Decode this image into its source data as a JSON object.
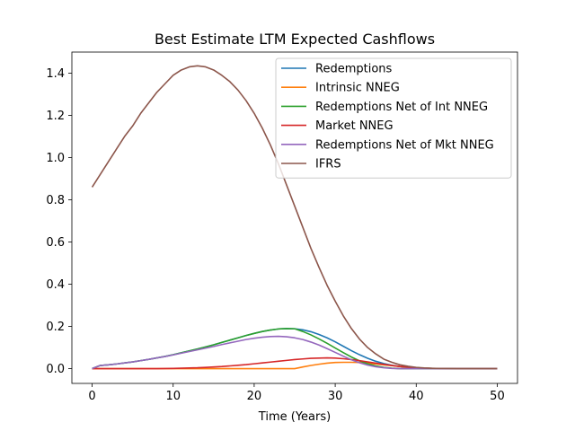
{
  "chart_data": {
    "type": "line",
    "title": "Best Estimate LTM Expected Cashflows",
    "xlabel": "Time (Years)",
    "ylabel": "",
    "xlim": [
      -2.5,
      52.5
    ],
    "ylim": [
      -0.07,
      1.5
    ],
    "xticks": [
      0,
      10,
      20,
      30,
      40,
      50
    ],
    "yticks": [
      0.0,
      0.2,
      0.4,
      0.6,
      0.8,
      1.0,
      1.2,
      1.4
    ],
    "ytick_labels": [
      "0.0",
      "0.2",
      "0.4",
      "0.6",
      "0.8",
      "1.0",
      "1.2",
      "1.4"
    ],
    "grid": false,
    "legend": "top-right",
    "x": [
      0,
      1,
      2,
      3,
      4,
      5,
      6,
      7,
      8,
      9,
      10,
      11,
      12,
      13,
      14,
      15,
      16,
      17,
      18,
      19,
      20,
      21,
      22,
      23,
      24,
      25,
      26,
      27,
      28,
      29,
      30,
      31,
      32,
      33,
      34,
      35,
      36,
      37,
      38,
      39,
      40,
      41,
      42,
      43,
      44,
      45,
      46,
      47,
      48,
      49,
      50
    ],
    "series": [
      {
        "name": "Redemptions",
        "color": "#1f77b4",
        "values": [
          0.0,
          0.015,
          0.018,
          0.022,
          0.027,
          0.032,
          0.038,
          0.044,
          0.051,
          0.058,
          0.066,
          0.075,
          0.084,
          0.093,
          0.103,
          0.113,
          0.124,
          0.135,
          0.146,
          0.157,
          0.167,
          0.176,
          0.183,
          0.188,
          0.19,
          0.189,
          0.184,
          0.175,
          0.162,
          0.146,
          0.127,
          0.106,
          0.085,
          0.066,
          0.049,
          0.035,
          0.024,
          0.016,
          0.01,
          0.006,
          0.004,
          0.002,
          0.001,
          0.0006,
          0.0003,
          0.0001,
          0.0,
          0.0,
          0.0,
          0.0,
          0.0
        ]
      },
      {
        "name": "Intrinsic NNEG",
        "color": "#ff7f0e",
        "values": [
          0.0,
          0.0,
          0.0,
          0.0,
          0.0,
          0.0,
          0.0,
          0.0,
          0.0,
          0.0,
          0.0,
          0.0,
          0.0,
          0.0,
          0.0,
          0.0,
          0.0,
          0.0,
          0.0,
          0.0,
          0.0,
          0.0,
          0.0,
          0.0,
          0.0,
          0.0,
          0.008,
          0.015,
          0.021,
          0.026,
          0.029,
          0.03,
          0.03,
          0.029,
          0.026,
          0.022,
          0.018,
          0.014,
          0.01,
          0.007,
          0.004,
          0.002,
          0.001,
          0.0005,
          0.0002,
          0.0001,
          0.0,
          0.0,
          0.0,
          0.0,
          0.0
        ]
      },
      {
        "name": "Redemptions Net of Int NNEG",
        "color": "#2ca02c",
        "values": [
          0.0,
          0.015,
          0.018,
          0.022,
          0.027,
          0.032,
          0.038,
          0.044,
          0.051,
          0.058,
          0.066,
          0.075,
          0.084,
          0.093,
          0.103,
          0.113,
          0.124,
          0.135,
          0.146,
          0.157,
          0.167,
          0.176,
          0.183,
          0.188,
          0.19,
          0.189,
          0.176,
          0.16,
          0.141,
          0.12,
          0.098,
          0.076,
          0.055,
          0.037,
          0.023,
          0.013,
          0.006,
          0.002,
          0.0,
          0.0,
          0.0,
          0.0,
          0.0,
          0.0,
          0.0,
          0.0,
          0.0,
          0.0,
          0.0,
          0.0,
          0.0
        ]
      },
      {
        "name": "Market NNEG",
        "color": "#d62728",
        "values": [
          0.0,
          0.0,
          0.0,
          0.0,
          0.0,
          0.0,
          0.0,
          0.0,
          0.0,
          0.0005,
          0.001,
          0.002,
          0.003,
          0.004,
          0.006,
          0.008,
          0.01,
          0.013,
          0.016,
          0.019,
          0.023,
          0.027,
          0.031,
          0.035,
          0.039,
          0.043,
          0.046,
          0.049,
          0.05,
          0.051,
          0.05,
          0.047,
          0.043,
          0.038,
          0.032,
          0.026,
          0.02,
          0.015,
          0.01,
          0.007,
          0.004,
          0.002,
          0.001,
          0.0005,
          0.0002,
          0.0001,
          0.0,
          0.0,
          0.0,
          0.0,
          0.0
        ]
      },
      {
        "name": "Redemptions Net of Mkt NNEG",
        "color": "#9467bd",
        "values": [
          0.0,
          0.015,
          0.018,
          0.022,
          0.027,
          0.032,
          0.038,
          0.044,
          0.051,
          0.0575,
          0.065,
          0.073,
          0.081,
          0.089,
          0.097,
          0.105,
          0.114,
          0.122,
          0.13,
          0.138,
          0.144,
          0.149,
          0.152,
          0.153,
          0.151,
          0.146,
          0.138,
          0.126,
          0.112,
          0.095,
          0.077,
          0.059,
          0.042,
          0.028,
          0.017,
          0.009,
          0.004,
          0.001,
          0.0,
          0.0,
          0.0,
          0.0,
          0.0,
          0.0,
          0.0,
          0.0,
          0.0,
          0.0,
          0.0,
          0.0,
          0.0
        ]
      },
      {
        "name": "IFRS",
        "color": "#8c564b",
        "values": [
          0.86,
          0.92,
          0.98,
          1.04,
          1.1,
          1.15,
          1.21,
          1.26,
          1.31,
          1.35,
          1.39,
          1.415,
          1.43,
          1.435,
          1.43,
          1.415,
          1.39,
          1.36,
          1.32,
          1.27,
          1.21,
          1.14,
          1.06,
          0.97,
          0.87,
          0.77,
          0.67,
          0.57,
          0.48,
          0.395,
          0.32,
          0.25,
          0.19,
          0.14,
          0.1,
          0.07,
          0.045,
          0.03,
          0.018,
          0.011,
          0.006,
          0.003,
          0.0015,
          0.0007,
          0.0003,
          0.0001,
          0.0,
          0.0,
          0.0,
          0.0,
          0.0
        ]
      }
    ]
  }
}
